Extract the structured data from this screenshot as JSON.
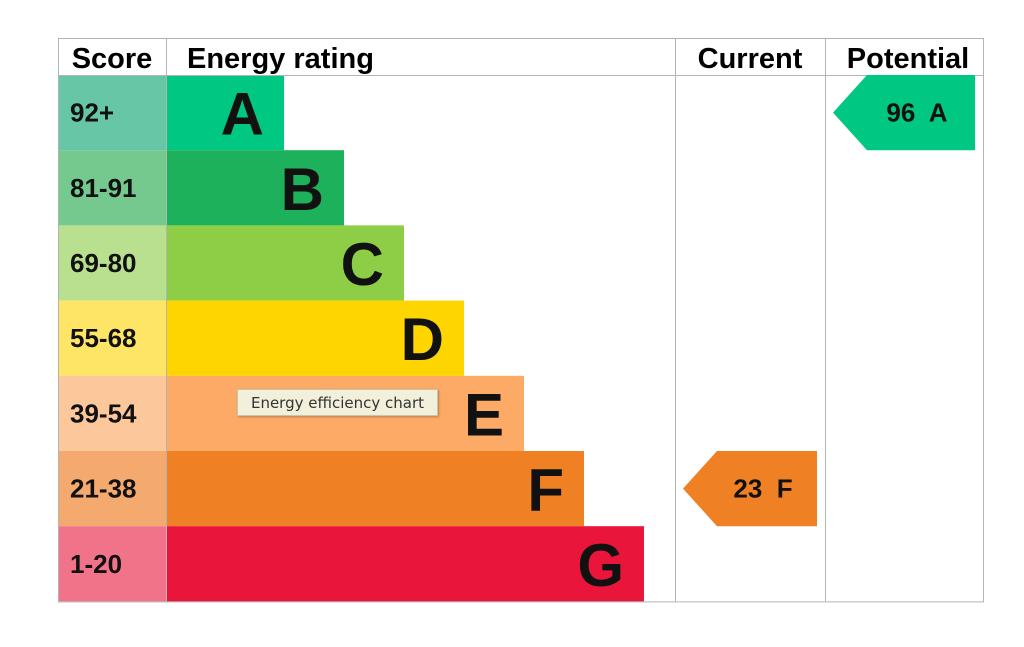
{
  "headers": {
    "score": "Score",
    "rating": "Energy rating",
    "current": "Current",
    "potential": "Potential"
  },
  "tooltip": "Energy efficiency chart",
  "chart_data": {
    "type": "table",
    "bands": [
      {
        "letter": "A",
        "range": "92+",
        "color": "#00c781",
        "score_bg": "#67c6a5"
      },
      {
        "letter": "B",
        "range": "81-91",
        "color": "#1cb15a",
        "score_bg": "#75c98f"
      },
      {
        "letter": "C",
        "range": "69-80",
        "color": "#8dce46",
        "score_bg": "#b9e08e"
      },
      {
        "letter": "D",
        "range": "55-68",
        "color": "#ffd500",
        "score_bg": "#ffe566"
      },
      {
        "letter": "E",
        "range": "39-54",
        "color": "#fcaa65",
        "score_bg": "#fdc79c"
      },
      {
        "letter": "F",
        "range": "21-38",
        "color": "#ef8023",
        "score_bg": "#f4aa6f"
      },
      {
        "letter": "G",
        "range": "1-20",
        "color": "#e9153b",
        "score_bg": "#f0738a"
      }
    ],
    "current": {
      "score": 23,
      "band": "F",
      "label": "23  F",
      "color": "#ef8023"
    },
    "potential": {
      "score": 96,
      "band": "A",
      "label": "96  A",
      "color": "#00c781"
    }
  }
}
